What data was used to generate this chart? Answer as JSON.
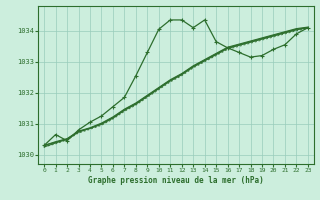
{
  "title": "Graphe pression niveau de la mer (hPa)",
  "background_color": "#cceedd",
  "grid_color": "#99ccbb",
  "line_color": "#2d6e2d",
  "ylim": [
    1029.7,
    1034.8
  ],
  "xlim": [
    -0.5,
    23.5
  ],
  "yticks": [
    1030,
    1031,
    1032,
    1033,
    1034
  ],
  "xticks": [
    0,
    1,
    2,
    3,
    4,
    5,
    6,
    7,
    8,
    9,
    10,
    11,
    12,
    13,
    14,
    15,
    16,
    17,
    18,
    19,
    20,
    21,
    22,
    23
  ],
  "series_spike": [
    1030.3,
    1030.65,
    1030.45,
    1030.8,
    1031.05,
    1031.25,
    1031.55,
    1031.85,
    1032.55,
    1033.3,
    1034.05,
    1034.35,
    1034.35,
    1034.1,
    1034.35,
    1033.65,
    1033.45,
    1033.3,
    1033.15,
    1033.2,
    1033.4,
    1033.55,
    1033.9,
    1034.1
  ],
  "series_linear1": [
    1030.3,
    1030.4,
    1030.5,
    1030.75,
    1030.85,
    1031.0,
    1031.2,
    1031.45,
    1031.65,
    1031.9,
    1032.15,
    1032.4,
    1032.6,
    1032.85,
    1033.05,
    1033.25,
    1033.45,
    1033.55,
    1033.65,
    1033.75,
    1033.85,
    1033.95,
    1034.05,
    1034.1
  ],
  "series_linear2": [
    1030.25,
    1030.38,
    1030.5,
    1030.73,
    1030.85,
    1030.98,
    1031.18,
    1031.43,
    1031.63,
    1031.88,
    1032.13,
    1032.38,
    1032.58,
    1032.83,
    1033.03,
    1033.23,
    1033.43,
    1033.53,
    1033.63,
    1033.73,
    1033.83,
    1033.93,
    1034.03,
    1034.1
  ],
  "series_linear3": [
    1030.3,
    1030.42,
    1030.52,
    1030.76,
    1030.87,
    1031.02,
    1031.22,
    1031.47,
    1031.67,
    1031.92,
    1032.17,
    1032.42,
    1032.62,
    1032.87,
    1033.07,
    1033.27,
    1033.47,
    1033.57,
    1033.67,
    1033.77,
    1033.87,
    1033.97,
    1034.07,
    1034.12
  ],
  "series_dotted": [
    1030.25,
    1030.35,
    1030.48,
    1030.7,
    1030.82,
    1030.95,
    1031.15,
    1031.4,
    1031.6,
    1031.85,
    1032.1,
    1032.35,
    1032.55,
    1032.8,
    1033.0,
    1033.2,
    1033.4,
    1033.5,
    1033.6,
    1033.7,
    1033.8,
    1033.9,
    1034.0,
    1034.08
  ]
}
